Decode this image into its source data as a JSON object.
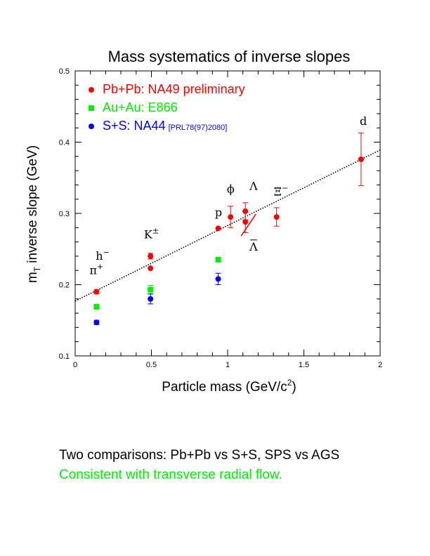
{
  "chart_data": {
    "type": "scatter",
    "title": "Mass systematics of inverse slopes",
    "xlabel_main": "Particle mass (GeV/c",
    "xlabel_sup": "2",
    "xlabel_end": ")",
    "ylabel_pre": "m",
    "ylabel_sub": "T",
    "ylabel_post": " inverse slope (GeV)",
    "xlim": [
      0,
      2
    ],
    "ylim": [
      0.1,
      0.5
    ],
    "xticks": [
      "0",
      "0.5",
      "1",
      "1.5",
      "2"
    ],
    "yticks": [
      "0.1",
      "0.2",
      "0.3",
      "0.4",
      "0.5"
    ],
    "legend_position": "top-left",
    "series": [
      {
        "name": "Pb+Pb: NA49 preliminary",
        "color": "#ff0000",
        "marker": "circle",
        "points": [
          {
            "x": 0.14,
            "y": 0.19,
            "err": 0.003
          },
          {
            "x": 0.494,
            "y": 0.24,
            "err": 0.004
          },
          {
            "x": 0.494,
            "y": 0.223,
            "err": 0.0
          },
          {
            "x": 0.938,
            "y": 0.279,
            "err": 0.0
          },
          {
            "x": 1.019,
            "y": 0.295,
            "err": 0.015
          },
          {
            "x": 1.116,
            "y": 0.303,
            "err": 0.012
          },
          {
            "x": 1.116,
            "y": 0.288,
            "err": 0.015
          },
          {
            "x": 1.321,
            "y": 0.295,
            "err": 0.013
          },
          {
            "x": 1.875,
            "y": 0.376,
            "err": 0.037
          }
        ]
      },
      {
        "name": "Au+Au: E866",
        "color": "#00ee00",
        "marker": "square",
        "points": [
          {
            "x": 0.14,
            "y": 0.169,
            "err": 0.0
          },
          {
            "x": 0.494,
            "y": 0.193,
            "err": 0.006
          },
          {
            "x": 0.938,
            "y": 0.235,
            "err": 0.0
          }
        ]
      },
      {
        "name": "S+S: NA44",
        "name_ref": "[PRL78(97)2080]",
        "color": "#0000ff",
        "marker": "circle",
        "points": [
          {
            "x": 0.14,
            "y": 0.147,
            "err": 0.003
          },
          {
            "x": 0.494,
            "y": 0.18,
            "err": 0.007
          },
          {
            "x": 0.938,
            "y": 0.208,
            "err": 0.008
          }
        ]
      }
    ],
    "fit_line": {
      "x": [
        0,
        2
      ],
      "y": [
        0.177,
        0.389
      ],
      "style": "dotted"
    },
    "annotations": [
      {
        "text": "h",
        "sup": "−",
        "x": 0.18,
        "y": 0.235
      },
      {
        "text": "π",
        "sup": "+",
        "x": 0.14,
        "y": 0.215
      },
      {
        "text": "K",
        "sup": "±",
        "x": 0.5,
        "y": 0.265
      },
      {
        "text": "p",
        "sup": "",
        "x": 0.94,
        "y": 0.296
      },
      {
        "text": "ϕ",
        "sup": "",
        "x": 1.02,
        "y": 0.329
      },
      {
        "text": "Λ",
        "sup": "",
        "x": 1.17,
        "y": 0.333
      },
      {
        "text": "Λ",
        "sup": "",
        "overbar": true,
        "x": 1.17,
        "y": 0.248
      },
      {
        "text": "Ξ",
        "sup": "−",
        "x": 1.35,
        "y": 0.325
      },
      {
        "text": "d",
        "sup": "",
        "x": 1.89,
        "y": 0.424
      }
    ]
  },
  "captions": {
    "line1": "Two comparisons: Pb+Pb vs S+S, SPS vs AGS",
    "line2": "Consistent with transverse radial flow.",
    "line2_color": "#00ee00"
  }
}
